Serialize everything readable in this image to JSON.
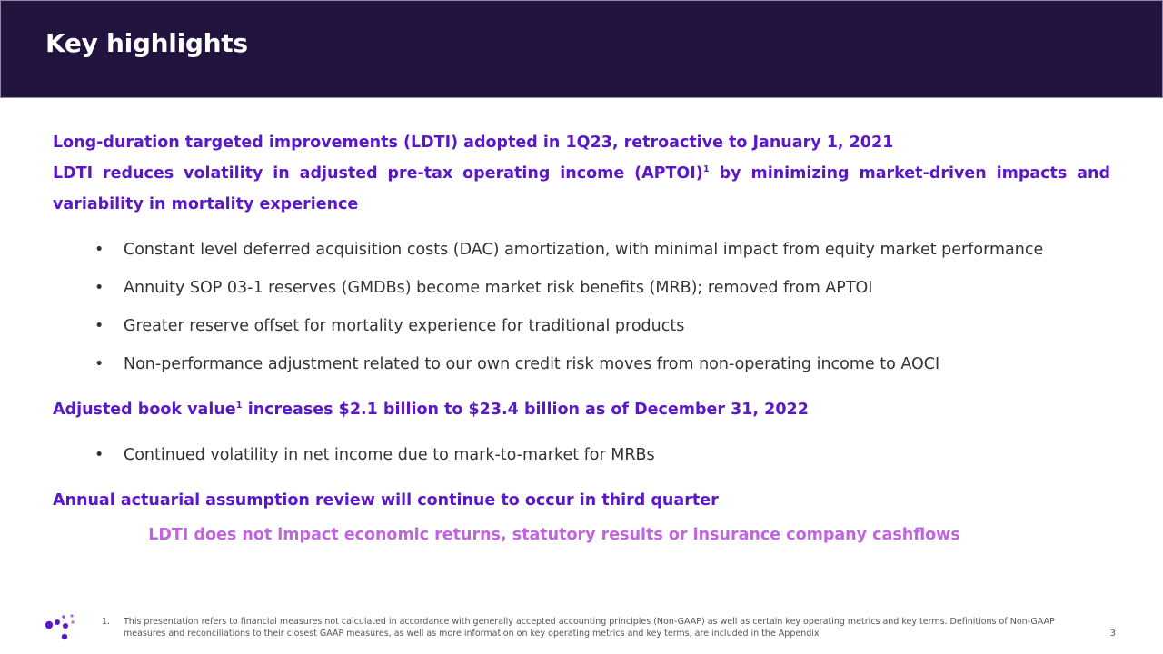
{
  "header": {
    "title": "Key highlights"
  },
  "content": {
    "lead1": "Long-duration targeted improvements (LDTI) adopted in 1Q23, retroactive to January 1, 2021",
    "lead2": {
      "text_before": "LDTI reduces volatility in adjusted pre-tax operating income (APTOI)",
      "sup": "1",
      "text_after": " by minimizing market-driven impacts and variability in mortality experience"
    },
    "bullets1": [
      "Constant level deferred acquisition costs (DAC) amortization, with minimal impact from equity market performance",
      "Annuity SOP 03-1 reserves (GMDBs) become market risk benefits (MRB); removed from APTOI",
      "Greater reserve offset for mortality experience for traditional products",
      "Non-performance adjustment related to our own credit risk moves from non-operating income to AOCI"
    ],
    "lead3": {
      "text_before": "Adjusted book value",
      "sup": "1",
      "text_after": " increases $2.1 billion to $23.4 billion as of December 31, 2022"
    },
    "bullets2": [
      "Continued volatility in net income due to mark-to-market for MRBs"
    ],
    "lead4": "Annual actuarial assumption review will continue to occur in third quarter",
    "callout": "LDTI does not impact economic returns, statutory results or insurance company cashflows"
  },
  "bullet_symbol": "•",
  "footer": {
    "footnote_number": "1.",
    "footnote_text": "This presentation refers to financial measures not calculated in accordance with generally accepted accounting principles (Non-GAAP) as well as certain key operating metrics and key terms.  Definitions of Non-GAAP measures and reconciliations to their closest GAAP measures, as well as more information on key operating metrics and key terms, are included in the Appendix",
    "page_number": "3"
  },
  "colors": {
    "header_bg": "#23133f",
    "lead_text": "#5a18c9",
    "callout_text": "#c263e0",
    "logo_dots": "#5a18c9"
  },
  "logo": {
    "icon": "dots-logo-icon"
  }
}
